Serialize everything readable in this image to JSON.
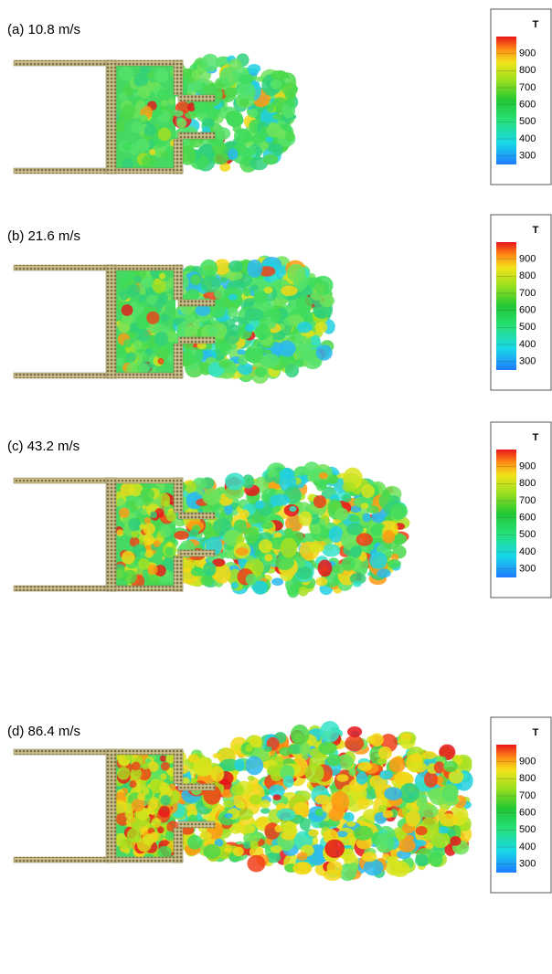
{
  "panels": [
    {
      "label": "(a) 10.8 m/s"
    },
    {
      "label": "(b) 21.6 m/s"
    },
    {
      "label": "(c) 43.2 m/s"
    },
    {
      "label": "(d) 86.4 m/s"
    }
  ],
  "colorbar": {
    "title": "T",
    "ticks": [
      900,
      800,
      700,
      600,
      500,
      400,
      300
    ]
  }
}
